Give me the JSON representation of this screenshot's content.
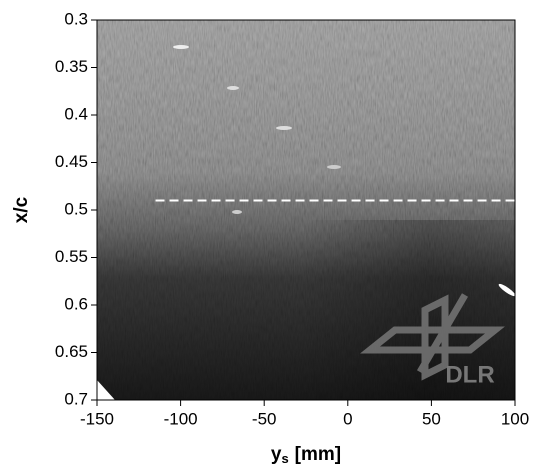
{
  "chart_data": {
    "type": "image",
    "ylabel": "x/c",
    "xlabel": {
      "text": "y",
      "subscript": "s",
      "suffix": "[mm]"
    },
    "xlim": [
      -150,
      100
    ],
    "xticks": [
      -150,
      -100,
      -50,
      0,
      50,
      100
    ],
    "ylim": [
      0.7,
      0.3
    ],
    "yticks": [
      0.3,
      0.35,
      0.4,
      0.45,
      0.5,
      0.55,
      0.6,
      0.65,
      0.7
    ],
    "reference_line": {
      "y": 0.49,
      "x": [
        -115,
        100
      ],
      "color": "#ffffff"
    },
    "logo": "DLR"
  }
}
